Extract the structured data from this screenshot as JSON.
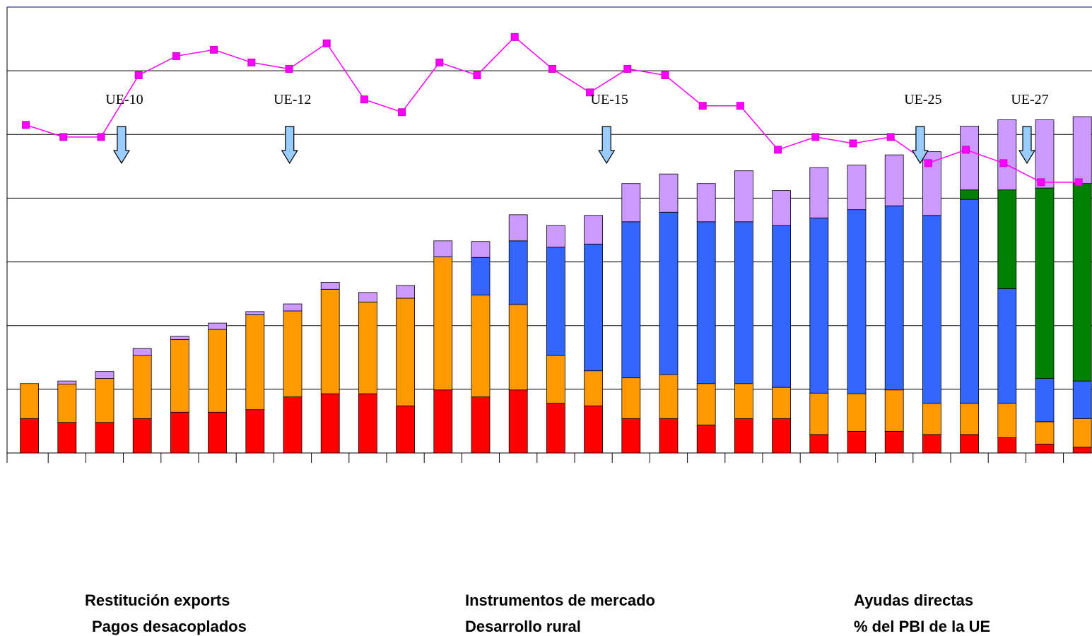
{
  "chart_data": {
    "type": "bar",
    "stacked": true,
    "categories": [
      null,
      null,
      null,
      null,
      null,
      null,
      null,
      null,
      null,
      null,
      null,
      null,
      null,
      null,
      null,
      null,
      null,
      null,
      null,
      null,
      null,
      null,
      null,
      null,
      null,
      null,
      null,
      null,
      null
    ],
    "series": [
      {
        "name": "Restitución exports",
        "color": "#ff0000",
        "values": [
          0.54,
          0.48,
          0.48,
          0.54,
          0.64,
          0.64,
          0.68,
          0.88,
          0.93,
          0.93,
          0.74,
          0.99,
          0.88,
          0.99,
          0.78,
          0.74,
          0.54,
          0.54,
          0.44,
          0.54,
          0.54,
          0.29,
          0.34,
          0.34,
          0.29,
          0.29,
          0.24,
          0.14,
          0.09
        ]
      },
      {
        "name": "Instrumentos de mercado",
        "color": "#ff9900",
        "values": [
          0.55,
          0.6,
          0.69,
          0.99,
          1.14,
          1.3,
          1.49,
          1.35,
          1.64,
          1.44,
          1.69,
          2.09,
          1.6,
          1.34,
          0.75,
          0.55,
          0.64,
          0.69,
          0.65,
          0.55,
          0.49,
          0.65,
          0.59,
          0.65,
          0.49,
          0.49,
          0.54,
          0.35,
          0.45
        ]
      },
      {
        "name": "Ayudas directas",
        "color": "#3366ff",
        "values": [
          0,
          0,
          0,
          0,
          0,
          0,
          0,
          0,
          0,
          0,
          0,
          0,
          0.59,
          1.0,
          1.7,
          1.99,
          2.45,
          2.55,
          2.54,
          2.54,
          2.54,
          2.75,
          2.89,
          2.89,
          2.95,
          3.2,
          1.8,
          0.68,
          0.59
        ]
      },
      {
        "name": "Pagos desacoplados",
        "color": "#008000",
        "values": [
          0,
          0,
          0,
          0,
          0,
          0,
          0,
          0,
          0,
          0,
          0,
          0,
          0,
          0,
          0,
          0,
          0,
          0,
          0,
          0,
          0,
          0,
          0,
          0,
          0,
          0.15,
          1.55,
          2.99,
          3.1
        ]
      },
      {
        "name": "Desarrollo rural",
        "color": "#cc99ff",
        "values": [
          0,
          0.05,
          0.11,
          0.11,
          0.05,
          0.1,
          0.05,
          0.11,
          0.11,
          0.15,
          0.2,
          0.25,
          0.25,
          0.41,
          0.34,
          0.45,
          0.6,
          0.6,
          0.6,
          0.8,
          0.55,
          0.79,
          0.7,
          0.8,
          1.0,
          1.0,
          1.1,
          1.07,
          1.05
        ]
      },
      {
        "name": "% del PBI de la UE",
        "color": "#ff00ff",
        "type": "line",
        "values": [
          5.15,
          4.96,
          4.96,
          5.93,
          6.23,
          6.33,
          6.13,
          6.03,
          6.43,
          5.55,
          5.35,
          6.13,
          5.93,
          6.53,
          6.03,
          5.66,
          6.03,
          5.93,
          5.45,
          5.45,
          4.76,
          4.96,
          4.86,
          4.96,
          4.55,
          4.76,
          4.55,
          4.25,
          4.25
        ]
      }
    ],
    "annotations": [
      "UE-10",
      "UE-12",
      "UE-15",
      "UE-25",
      "UE-27"
    ],
    "ylim": [
      0,
      7
    ],
    "yticks": [
      0,
      1,
      2,
      3,
      4,
      5,
      6,
      7
    ],
    "grid": true
  }
}
